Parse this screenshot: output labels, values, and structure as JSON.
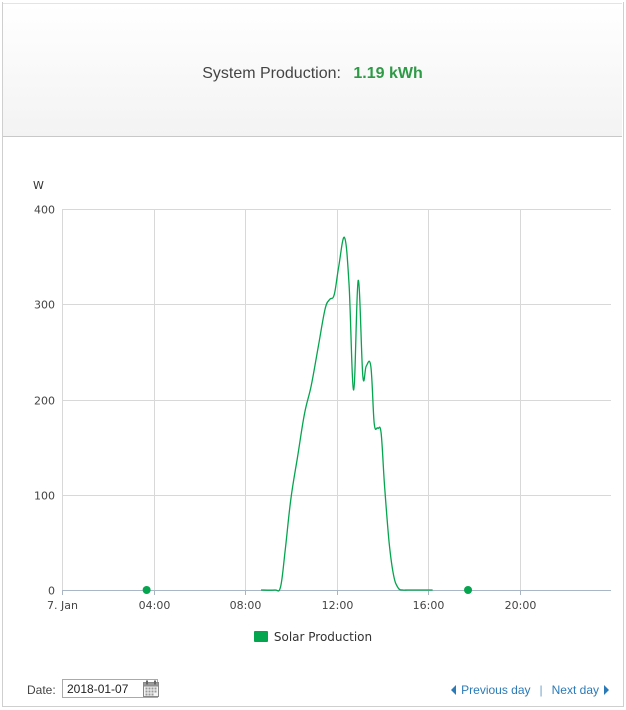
{
  "summary": {
    "label": "System Production:",
    "value": "1.19 kWh"
  },
  "chart_data": {
    "type": "line",
    "title": "",
    "ylabel": "W",
    "xlabel": "",
    "xlim": [
      0,
      24
    ],
    "ylim": [
      0,
      400
    ],
    "y_ticks": [
      0,
      100,
      200,
      300,
      400
    ],
    "x_ticks": [
      0,
      4,
      8,
      12,
      16,
      20
    ],
    "x_tick_labels": [
      "7. Jan",
      "04:00",
      "08:00",
      "12:00",
      "16:00",
      "20:00"
    ],
    "grid": true,
    "legend_position": "bottom-center",
    "series": [
      {
        "name": "Solar Production",
        "color": "#04a54e",
        "x": [
          8.7,
          9.3,
          9.55,
          9.75,
          10.0,
          10.3,
          10.6,
          10.9,
          11.2,
          11.5,
          11.7,
          11.9,
          12.1,
          12.35,
          12.55,
          12.75,
          12.95,
          13.15,
          13.3,
          13.5,
          13.65,
          13.8,
          13.95,
          14.1,
          14.3,
          14.5,
          14.7,
          14.9,
          15.1,
          15.4,
          15.7,
          16.2
        ],
        "y": [
          0,
          0,
          3,
          40,
          95,
          140,
          185,
          215,
          255,
          295,
          305,
          310,
          340,
          370,
          320,
          210,
          325,
          225,
          235,
          235,
          175,
          170,
          165,
          110,
          50,
          15,
          2,
          0,
          0,
          0,
          0,
          0
        ]
      }
    ],
    "markers": [
      {
        "x": 3.7,
        "y": 0
      },
      {
        "x": 17.75,
        "y": 0
      }
    ]
  },
  "footer": {
    "date_label": "Date:",
    "date_value": "2018-01-07",
    "prev_label": "Previous day",
    "separator": "|",
    "next_label": "Next day"
  },
  "icons": {
    "calendar": "calendar-icon",
    "prev": "triangle-left-icon",
    "next": "triangle-right-icon"
  }
}
